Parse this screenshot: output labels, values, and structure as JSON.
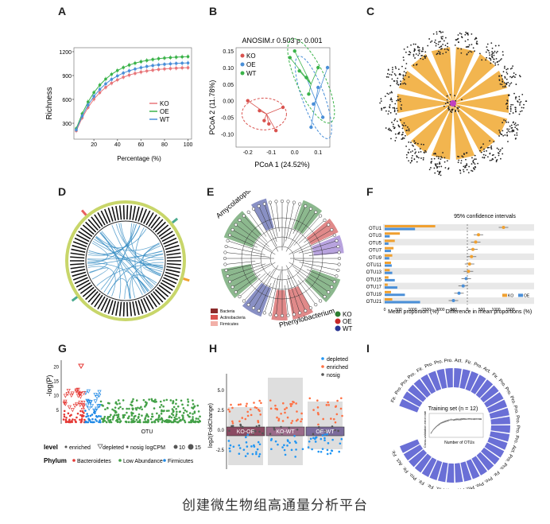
{
  "caption": "创建微生物组高通量分析平台",
  "panels": {
    "A": {
      "label": "A",
      "ylabel": "Richness",
      "xlabel": "Percentage (%)",
      "yticks": [
        "1200",
        "900",
        "600",
        "300"
      ],
      "xticks": [
        "20",
        "40",
        "60",
        "80",
        "100"
      ],
      "legend": [
        {
          "name": "KO",
          "color": "#e8777b"
        },
        {
          "name": "OE",
          "color": "#3bb34a"
        },
        {
          "name": "WT",
          "color": "#4a8fd8"
        }
      ]
    },
    "B": {
      "label": "B",
      "title": "ANOSIM.r 0.503 p: 0.001",
      "ylabel": "PCoA 2 (11.78%)",
      "xlabel": "PCoA 1 (24.52%)",
      "yticks": [
        "0.15",
        "0.10",
        "0.05",
        "0.00",
        "-0.05",
        "-0.10"
      ],
      "xticks": [
        "-0.2",
        "-0.1",
        "0.0",
        "0.1"
      ],
      "legend": [
        {
          "name": "KO",
          "color": "#d9534f"
        },
        {
          "name": "OE",
          "color": "#4a8fd8"
        },
        {
          "name": "WT",
          "color": "#3bb34a"
        }
      ]
    },
    "C": {
      "label": "C"
    },
    "D": {
      "label": "D"
    },
    "E": {
      "label": "E",
      "annotations": [
        "Amycolatopsis",
        "Phenylobacterium"
      ],
      "legend": [
        {
          "name": "Bacteria",
          "color": "#8b2a2a"
        },
        {
          "name": "Actinobacteria",
          "color": "#d9534f"
        },
        {
          "name": "Firmicutes",
          "color": "#f2b0a8"
        }
      ],
      "groups": [
        {
          "name": "KO",
          "color": "#2e7d32"
        },
        {
          "name": "OE",
          "color": "#c62828"
        },
        {
          "name": "WT",
          "color": "#283593"
        }
      ]
    },
    "F": {
      "label": "F",
      "ci_title": "95% confidence intervals",
      "otus": [
        "OTU1",
        "OTU3",
        "OTU5",
        "OTU7",
        "OTU9",
        "OTU11",
        "OTU13",
        "OTU15",
        "OTU17",
        "OTU19",
        "OTU21"
      ],
      "left_xlabel": "Mean proportion (%)",
      "right_xlabel": "Difference in mean proportions (%)",
      "left_xticks": [
        "0",
        "500",
        "1000",
        "1500",
        "2000"
      ],
      "right_xticks": [
        "-500",
        "0",
        "500",
        "1000",
        "1500"
      ],
      "legend": [
        {
          "name": "KO",
          "color": "#f0a030"
        },
        {
          "name": "OE",
          "color": "#4a8fd8"
        }
      ]
    },
    "G": {
      "label": "G",
      "ylabel": "-log(P)",
      "xlabel": "OTU",
      "yticks": [
        "20",
        "15",
        "10",
        "5"
      ],
      "level_title": "level",
      "level_items": [
        "enriched",
        "depleted",
        "nosig"
      ],
      "cpm_title": "logCPM",
      "cpm_items": [
        "10",
        "15"
      ],
      "phylum_title": "Phylum",
      "phylum_items": [
        {
          "name": "Bacteroidetes",
          "color": "#e53935"
        },
        {
          "name": "Low Abundance",
          "color": "#43a047"
        },
        {
          "name": "Firmicutes",
          "color": "#1e88e5"
        }
      ]
    },
    "H": {
      "label": "H",
      "ylabel": "log2(FoldChange)",
      "yticks": [
        "5.0",
        "2.5",
        "0.0",
        "-2.5"
      ],
      "legend": [
        {
          "name": "depleted",
          "color": "#2196f3"
        },
        {
          "name": "enriched",
          "color": "#ff7043"
        },
        {
          "name": "nosig",
          "color": "#555555"
        }
      ],
      "groups": [
        "KO-OE",
        "KO-WT",
        "OE-WT"
      ]
    },
    "I": {
      "label": "I",
      "inset_title": "Training set (n = 12)",
      "inset_ylabel": "Cross-validation error rate",
      "inset_xlabel": "Number of OTUs",
      "ring_labels": [
        "Fir.",
        "Pro.",
        "Pro.",
        "Pro.",
        "Fir.",
        "Pro.",
        "Pro.",
        "Pro.",
        "Act.",
        "Fir.",
        "Pro.",
        "Act.",
        "Fir.",
        "Pro.",
        "Pro.",
        "Pro.",
        "Pro.",
        "Pro.",
        "Pro.",
        "Pro.",
        "Act.",
        "Pro.",
        "Pro.",
        "Fir.",
        "Pro.",
        "Pro.",
        "Pro.",
        "Pro.",
        "Pro.",
        "Pro.",
        "Fir.",
        "Fir.",
        "Pro.",
        "Fir.",
        "Act.",
        "Fir."
      ]
    }
  }
}
